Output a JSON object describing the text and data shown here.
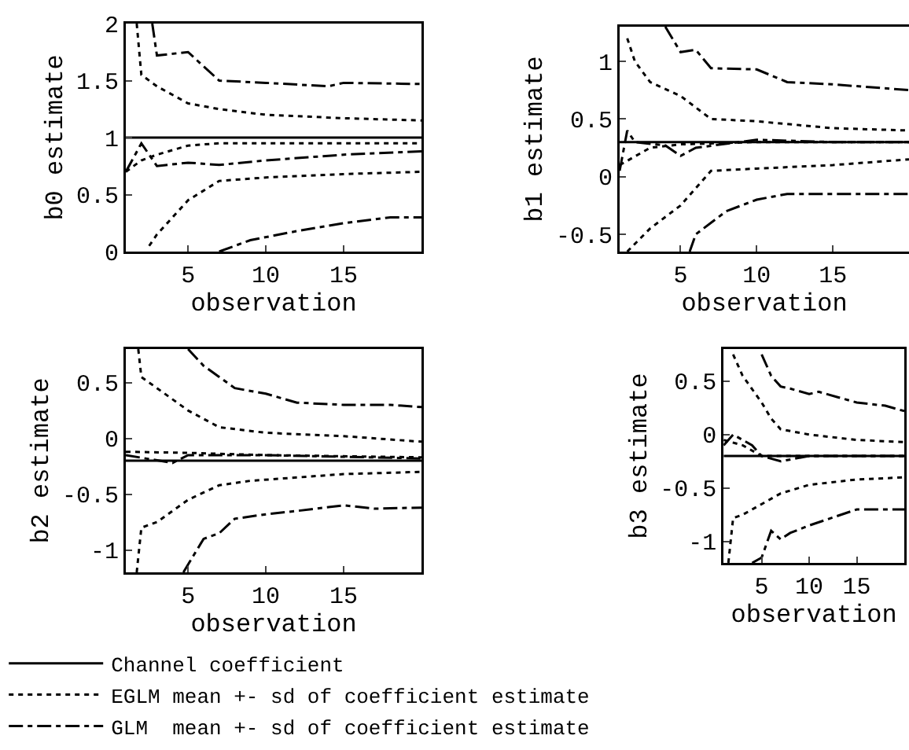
{
  "chart_data": [
    {
      "type": "line",
      "xlabel": "observation",
      "ylabel": "b0 estimate",
      "xlim": [
        1,
        20
      ],
      "xticks": [
        5,
        10,
        15
      ],
      "ylim": [
        0,
        2
      ],
      "yticks": [
        0,
        0.5,
        1,
        1.5,
        2
      ],
      "series": [
        {
          "color": "#000000",
          "line_style": "solid",
          "x": [
            1,
            20
          ],
          "values": [
            1,
            1
          ]
        },
        {
          "color": "#000000",
          "line_style": "dotted",
          "x": [
            1.7,
            2,
            3,
            5,
            7,
            10,
            15,
            20
          ],
          "values": [
            2,
            1.55,
            1.45,
            1.3,
            1.25,
            1.2,
            1.17,
            1.15
          ]
        },
        {
          "color": "#000000",
          "line_style": "dotted",
          "x": [
            1,
            2,
            3,
            5,
            7,
            10,
            15,
            20
          ],
          "values": [
            0.7,
            0.8,
            0.85,
            0.93,
            0.95,
            0.95,
            0.95,
            0.95
          ]
        },
        {
          "color": "#000000",
          "line_style": "dotted",
          "x": [
            2.5,
            3,
            5,
            7,
            10,
            15,
            20
          ],
          "values": [
            0.05,
            0.15,
            0.45,
            0.62,
            0.65,
            0.68,
            0.7
          ]
        },
        {
          "color": "#000000",
          "line_style": "dashdot",
          "x": [
            2.7,
            3,
            5,
            7,
            10,
            14,
            15,
            20
          ],
          "values": [
            2,
            1.72,
            1.75,
            1.5,
            1.48,
            1.45,
            1.48,
            1.47
          ]
        },
        {
          "color": "#000000",
          "line_style": "dashdot",
          "x": [
            1,
            2,
            3,
            5,
            7,
            10,
            15,
            20
          ],
          "values": [
            0.7,
            0.95,
            0.75,
            0.78,
            0.76,
            0.8,
            0.85,
            0.88
          ]
        },
        {
          "color": "#000000",
          "line_style": "dashdot",
          "x": [
            7,
            9,
            12,
            15,
            18,
            20
          ],
          "values": [
            0,
            0.1,
            0.18,
            0.25,
            0.3,
            0.3
          ]
        }
      ]
    },
    {
      "type": "line",
      "xlabel": "observation",
      "ylabel": "b1 estimate",
      "xlim": [
        1,
        20
      ],
      "xticks": [
        5,
        10,
        15
      ],
      "ylim": [
        -0.65,
        1.3
      ],
      "yticks": [
        -0.5,
        0,
        0.5,
        1
      ],
      "series": [
        {
          "color": "#000000",
          "line_style": "solid",
          "x": [
            1,
            20
          ],
          "values": [
            0.3,
            0.3
          ]
        },
        {
          "color": "#000000",
          "line_style": "dotted",
          "x": [
            1.5,
            2,
            3,
            5,
            7,
            10,
            15,
            20
          ],
          "values": [
            1.2,
            1.0,
            0.82,
            0.7,
            0.5,
            0.48,
            0.42,
            0.4
          ]
        },
        {
          "color": "#000000",
          "line_style": "dotted",
          "x": [
            1,
            3,
            5,
            10,
            20
          ],
          "values": [
            0.1,
            0.25,
            0.28,
            0.3,
            0.3
          ]
        },
        {
          "color": "#000000",
          "line_style": "dotted",
          "x": [
            1.5,
            3,
            5,
            7,
            10,
            15,
            20
          ],
          "values": [
            -0.65,
            -0.45,
            -0.25,
            0.05,
            0.07,
            0.1,
            0.15
          ]
        },
        {
          "color": "#000000",
          "line_style": "dashdot",
          "x": [
            4,
            5,
            6,
            7,
            10,
            12,
            15,
            20
          ],
          "values": [
            1.3,
            1.08,
            1.1,
            0.94,
            0.93,
            0.82,
            0.8,
            0.75
          ]
        },
        {
          "color": "#000000",
          "line_style": "dashdot",
          "x": [
            1,
            1.5,
            2,
            4,
            5,
            6,
            10,
            15,
            20
          ],
          "values": [
            0.05,
            0.4,
            0.3,
            0.27,
            0.18,
            0.25,
            0.32,
            0.3,
            0.3
          ]
        },
        {
          "color": "#000000",
          "line_style": "dashdot",
          "x": [
            5.6,
            6,
            8,
            10,
            12,
            15,
            20
          ],
          "values": [
            -0.65,
            -0.5,
            -0.3,
            -0.2,
            -0.15,
            -0.15,
            -0.15
          ]
        }
      ]
    },
    {
      "type": "line",
      "xlabel": "observation",
      "ylabel": "b2 estimate",
      "xlim": [
        1,
        20
      ],
      "xticks": [
        5,
        10,
        15
      ],
      "ylim": [
        -1.2,
        0.8
      ],
      "yticks": [
        -1,
        -0.5,
        0,
        0.5
      ],
      "series": [
        {
          "color": "#000000",
          "line_style": "solid",
          "x": [
            1,
            20
          ],
          "values": [
            -0.2,
            -0.2
          ]
        },
        {
          "color": "#000000",
          "line_style": "dotted",
          "x": [
            1.8,
            2,
            3,
            5,
            7,
            10,
            15,
            20
          ],
          "values": [
            0.8,
            0.55,
            0.45,
            0.25,
            0.1,
            0.05,
            0.02,
            -0.03
          ]
        },
        {
          "color": "#000000",
          "line_style": "dotted",
          "x": [
            1,
            5,
            10,
            20
          ],
          "values": [
            -0.12,
            -0.13,
            -0.15,
            -0.17
          ]
        },
        {
          "color": "#000000",
          "line_style": "dotted",
          "x": [
            1.7,
            2,
            3,
            5,
            7,
            9,
            12,
            15,
            20
          ],
          "values": [
            -1.2,
            -0.8,
            -0.75,
            -0.55,
            -0.42,
            -0.38,
            -0.35,
            -0.32,
            -0.3
          ]
        },
        {
          "color": "#000000",
          "line_style": "dashdot",
          "x": [
            5,
            6,
            7,
            8,
            10,
            12,
            15,
            18,
            20
          ],
          "values": [
            0.8,
            0.65,
            0.55,
            0.45,
            0.4,
            0.32,
            0.3,
            0.3,
            0.28
          ]
        },
        {
          "color": "#000000",
          "line_style": "dashdot",
          "x": [
            1,
            4,
            5,
            10,
            20
          ],
          "values": [
            -0.15,
            -0.22,
            -0.15,
            -0.15,
            -0.18
          ]
        },
        {
          "color": "#000000",
          "line_style": "dashdot",
          "x": [
            4.7,
            6,
            7,
            8,
            10,
            12,
            15,
            17,
            20
          ],
          "values": [
            -1.2,
            -0.9,
            -0.85,
            -0.72,
            -0.68,
            -0.65,
            -0.6,
            -0.63,
            -0.62
          ]
        }
      ]
    },
    {
      "type": "line",
      "xlabel": "observation",
      "ylabel": "b3 estimate",
      "xlim": [
        1,
        20
      ],
      "xticks": [
        5,
        10,
        15
      ],
      "ylim": [
        -1.2,
        0.8
      ],
      "yticks": [
        -1,
        -0.5,
        0,
        0.5
      ],
      "legend": "bottom",
      "series": [
        {
          "name": "Channel coefficient",
          "color": "#000000",
          "line_style": "solid",
          "x": [
            1,
            20
          ],
          "values": [
            -0.2,
            -0.2
          ]
        },
        {
          "name": "EGLM mean +- sd of coefficient estimate",
          "color": "#000000",
          "line_style": "dotted",
          "x": [
            2,
            3,
            5,
            6,
            7,
            10,
            15,
            20
          ],
          "values": [
            0.75,
            0.55,
            0.3,
            0.15,
            0.05,
            0,
            -0.05,
            -0.07
          ]
        },
        {
          "color": "#000000",
          "line_style": "dotted",
          "x": [
            1,
            3,
            5,
            20
          ],
          "values": [
            -0.05,
            -0.1,
            -0.2,
            -0.2
          ]
        },
        {
          "color": "#000000",
          "line_style": "dotted",
          "x": [
            1.5,
            2,
            3,
            5,
            7,
            10,
            15,
            20
          ],
          "values": [
            -1.2,
            -0.78,
            -0.75,
            -0.65,
            -0.55,
            -0.47,
            -0.42,
            -0.4
          ]
        },
        {
          "name": "GLM  mean +- sd of coefficient estimate",
          "color": "#000000",
          "line_style": "dashdot",
          "x": [
            5,
            6,
            7,
            8,
            10,
            11,
            13,
            15,
            18,
            20
          ],
          "values": [
            0.75,
            0.55,
            0.45,
            0.43,
            0.38,
            0.4,
            0.35,
            0.3,
            0.27,
            0.22
          ]
        },
        {
          "color": "#000000",
          "line_style": "dashdot",
          "x": [
            1,
            2,
            4,
            5,
            7,
            10,
            20
          ],
          "values": [
            -0.1,
            0,
            -0.1,
            -0.2,
            -0.25,
            -0.2,
            -0.2
          ]
        },
        {
          "color": "#000000",
          "line_style": "dashdot",
          "x": [
            4,
            5,
            6,
            7,
            8,
            10,
            15,
            18,
            20
          ],
          "values": [
            -1.2,
            -1.15,
            -0.9,
            -0.98,
            -0.92,
            -0.85,
            -0.7,
            -0.7,
            -0.7
          ]
        }
      ]
    }
  ]
}
